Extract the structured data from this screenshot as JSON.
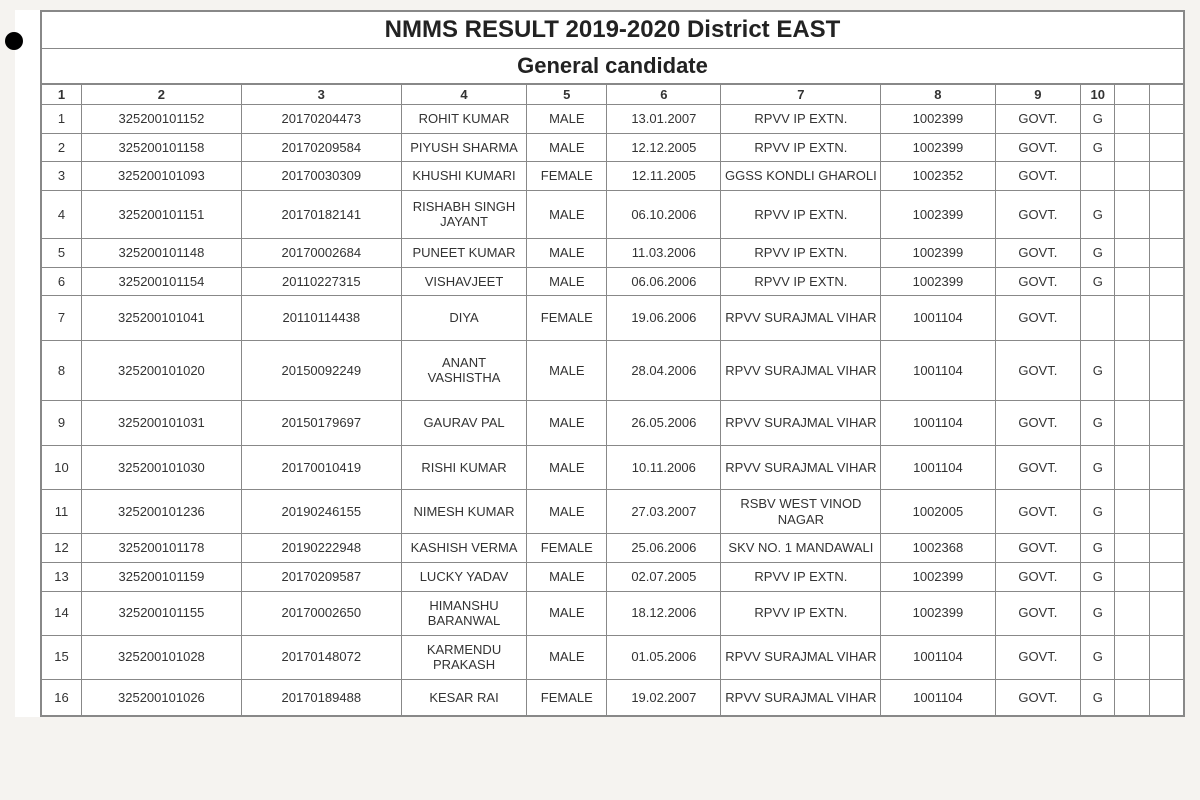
{
  "title": "NMMS RESULT 2019-2020 District EAST",
  "subtitle": "General candidate",
  "columns": [
    "1",
    "2",
    "3",
    "4",
    "5",
    "6",
    "7",
    "8",
    "9",
    "10",
    "",
    ""
  ],
  "column_widths_pct": [
    3.5,
    14,
    14,
    11,
    7,
    10,
    14,
    10,
    7.5,
    3,
    3,
    3
  ],
  "font_family": "Arial",
  "title_fontsize": 24,
  "subtitle_fontsize": 22,
  "cell_fontsize": 13,
  "border_color": "#888888",
  "text_color": "#333333",
  "background_color": "#ffffff",
  "page_background": "#f5f3f0",
  "rows": [
    [
      "1",
      "325200101152",
      "20170204473",
      "ROHIT KUMAR",
      "MALE",
      "13.01.2007",
      "RPVV IP EXTN.",
      "1002399",
      "GOVT.",
      "G",
      "",
      ""
    ],
    [
      "2",
      "325200101158",
      "20170209584",
      "PIYUSH SHARMA",
      "MALE",
      "12.12.2005",
      "RPVV IP EXTN.",
      "1002399",
      "GOVT.",
      "G",
      "",
      ""
    ],
    [
      "3",
      "325200101093",
      "20170030309",
      "KHUSHI KUMARI",
      "FEMALE",
      "12.11.2005",
      "GGSS KONDLI GHAROLI",
      "1002352",
      "GOVT.",
      "",
      "",
      ""
    ],
    [
      "4",
      "325200101151",
      "20170182141",
      "RISHABH SINGH JAYANT",
      "MALE",
      "06.10.2006",
      "RPVV IP EXTN.",
      "1002399",
      "GOVT.",
      "G",
      "",
      ""
    ],
    [
      "5",
      "325200101148",
      "20170002684",
      "PUNEET KUMAR",
      "MALE",
      "11.03.2006",
      "RPVV IP EXTN.",
      "1002399",
      "GOVT.",
      "G",
      "",
      ""
    ],
    [
      "6",
      "325200101154",
      "20110227315",
      "VISHAVJEET",
      "MALE",
      "06.06.2006",
      "RPVV IP EXTN.",
      "1002399",
      "GOVT.",
      "G",
      "",
      ""
    ],
    [
      "7",
      "325200101041",
      "20110114438",
      "DIYA",
      "FEMALE",
      "19.06.2006",
      "RPVV SURAJMAL VIHAR",
      "1001104",
      "GOVT.",
      "",
      "",
      ""
    ],
    [
      "8",
      "325200101020",
      "20150092249",
      "ANANT VASHISTHA",
      "MALE",
      "28.04.2006",
      "RPVV SURAJMAL VIHAR",
      "1001104",
      "GOVT.",
      "G",
      "",
      ""
    ],
    [
      "9",
      "325200101031",
      "20150179697",
      "GAURAV PAL",
      "MALE",
      "26.05.2006",
      "RPVV SURAJMAL VIHAR",
      "1001104",
      "GOVT.",
      "G",
      "",
      ""
    ],
    [
      "10",
      "325200101030",
      "20170010419",
      "RISHI KUMAR",
      "MALE",
      "10.11.2006",
      "RPVV SURAJMAL VIHAR",
      "1001104",
      "GOVT.",
      "G",
      "",
      ""
    ],
    [
      "11",
      "325200101236",
      "20190246155",
      "NIMESH KUMAR",
      "MALE",
      "27.03.2007",
      "RSBV WEST VINOD NAGAR",
      "1002005",
      "GOVT.",
      "G",
      "",
      ""
    ],
    [
      "12",
      "325200101178",
      "20190222948",
      "KASHISH VERMA",
      "FEMALE",
      "25.06.2006",
      "SKV NO. 1 MANDAWALI",
      "1002368",
      "GOVT.",
      "G",
      "",
      ""
    ],
    [
      "13",
      "325200101159",
      "20170209587",
      "LUCKY YADAV",
      "MALE",
      "02.07.2005",
      "RPVV IP EXTN.",
      "1002399",
      "GOVT.",
      "G",
      "",
      ""
    ],
    [
      "14",
      "325200101155",
      "20170002650",
      "HIMANSHU BARANWAL",
      "MALE",
      "18.12.2006",
      "RPVV IP EXTN.",
      "1002399",
      "GOVT.",
      "G",
      "",
      ""
    ],
    [
      "15",
      "325200101028",
      "20170148072",
      "KARMENDU PRAKASH",
      "MALE",
      "01.05.2006",
      "RPVV SURAJMAL VIHAR",
      "1001104",
      "GOVT.",
      "G",
      "",
      ""
    ],
    [
      "16",
      "325200101026",
      "20170189488",
      "KESAR RAI",
      "FEMALE",
      "19.02.2007",
      "RPVV SURAJMAL VIHAR",
      "1001104",
      "GOVT.",
      "G",
      "",
      ""
    ]
  ]
}
